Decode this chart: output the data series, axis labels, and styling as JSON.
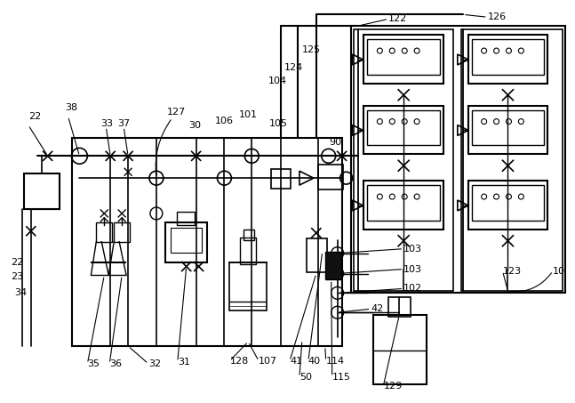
{
  "bg_color": "#ffffff",
  "line_color": "#000000",
  "figsize": [
    6.47,
    4.53
  ],
  "dpi": 100
}
